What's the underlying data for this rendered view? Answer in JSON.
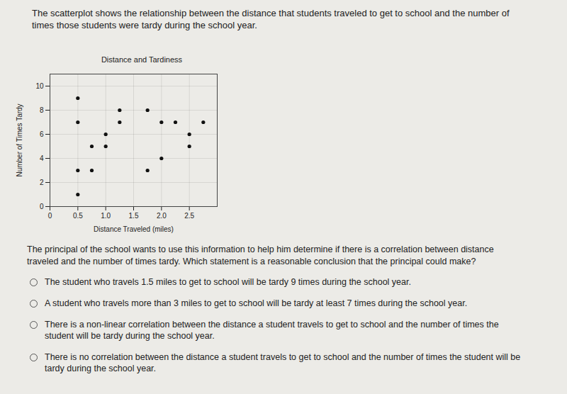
{
  "intro": "The scatterplot shows the relationship between the distance that students traveled to get to school and the number of times those students were tardy during the school year.",
  "chart_data": {
    "type": "scatter",
    "title": "Distance and Tardiness",
    "x_label": "Distance Traveled (miles)",
    "y_label": "Number of Times Tardy",
    "x": [
      0.5,
      0.5,
      0.5,
      0.5,
      0.75,
      0.75,
      1.0,
      1.0,
      1.25,
      1.25,
      1.75,
      1.75,
      2.0,
      2.0,
      2.25,
      2.5,
      2.5,
      2.75
    ],
    "values": [
      9,
      7,
      3,
      1,
      5,
      3,
      6,
      5,
      8,
      7,
      8,
      3,
      7,
      4,
      7,
      6,
      5,
      7
    ],
    "color": "#111111",
    "marker": "circle",
    "xlim": [
      0,
      3
    ],
    "xticks": [
      0,
      0.5,
      {
        "value": 1,
        "label": "1.0"
      },
      1.5,
      {
        "value": 2,
        "label": "2.0"
      },
      2.5
    ],
    "ylim": [
      0,
      11
    ],
    "yticks": [
      0,
      2,
      4,
      6,
      8,
      10
    ],
    "grid": true
  },
  "question": "The principal of the school wants to use this information to help him determine if there is a correlation between distance traveled and the number of times tardy.  Which statement is a reasonable conclusion that the principal could make?",
  "choices": [
    "The student who travels 1.5 miles to get to school will be tardy 9 times during the school year.",
    "A student who travels more than 3 miles to get to school will be tardy at least 7 times during the school year.",
    "There is a non-linear correlation between the distance a student travels to get to school and the number of times the student will be tardy during the school year.",
    "There is no correlation between the distance a student travels to get to school and the number of times the student will be tardy during the school year."
  ]
}
